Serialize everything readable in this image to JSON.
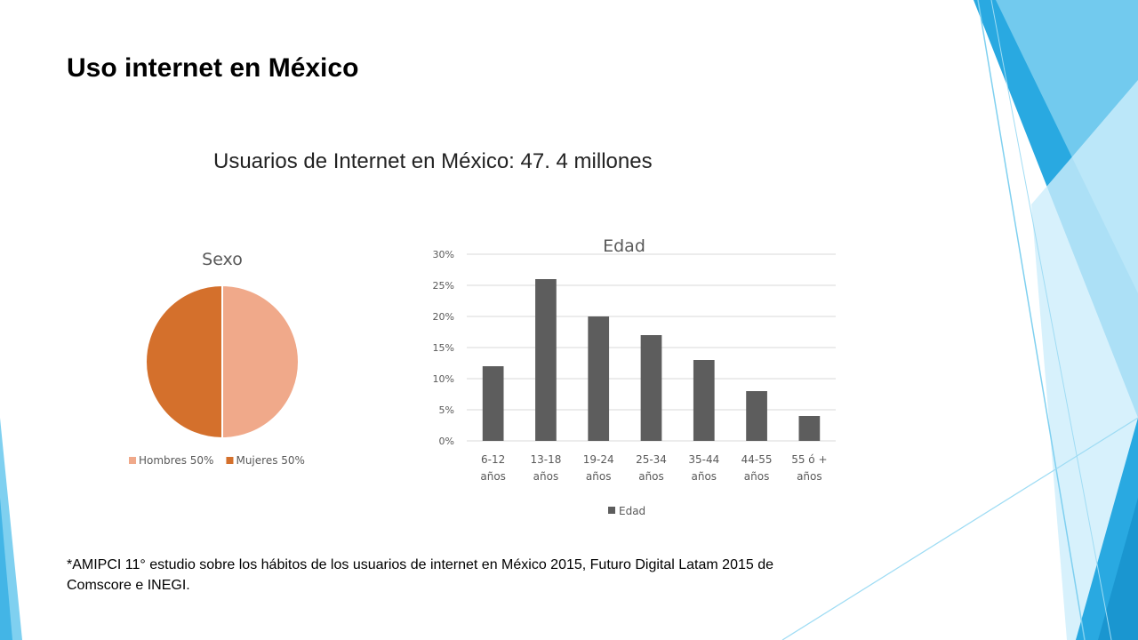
{
  "slide": {
    "title": "Uso internet en México",
    "subtitle": "Usuarios de Internet en México: 47. 4 millones",
    "footnote": "*AMIPCI 11° estudio sobre los hábitos de los usuarios de internet en México 2015, Futuro Digital Latam 2015 de Comscore e INEGI."
  },
  "colors": {
    "accent_blue": "#29a9e1",
    "light_blue": "#7fd0f0",
    "pale_blue": "#cdeefb",
    "hombres": "#f0a98a",
    "mujeres": "#d4702c",
    "bar": "#5d5d5d"
  },
  "chart_data": [
    {
      "type": "pie",
      "title": "Sexo",
      "slices": [
        {
          "label": "Hombres",
          "value": 50,
          "legend": "Hombres 50%",
          "color": "#f0a98a"
        },
        {
          "label": "Mujeres",
          "value": 50,
          "legend": "Mujeres 50%",
          "color": "#d4702c"
        }
      ],
      "legend_position": "bottom"
    },
    {
      "type": "bar",
      "title": "Edad",
      "categories": [
        [
          "6-12",
          "años"
        ],
        [
          "13-18",
          "años"
        ],
        [
          "19-24",
          "años"
        ],
        [
          "25-34",
          "años"
        ],
        [
          "35-44",
          "años"
        ],
        [
          "44-55",
          "años"
        ],
        [
          "55 ó +",
          "años"
        ]
      ],
      "series": [
        {
          "name": "Edad",
          "values": [
            12,
            26,
            20,
            17,
            13,
            8,
            4
          ],
          "color": "#5d5d5d"
        }
      ],
      "ylim": [
        0,
        30
      ],
      "yticks": [
        "0%",
        "5%",
        "10%",
        "15%",
        "20%",
        "25%",
        "30%"
      ],
      "grid": true,
      "legend_position": "bottom"
    }
  ]
}
